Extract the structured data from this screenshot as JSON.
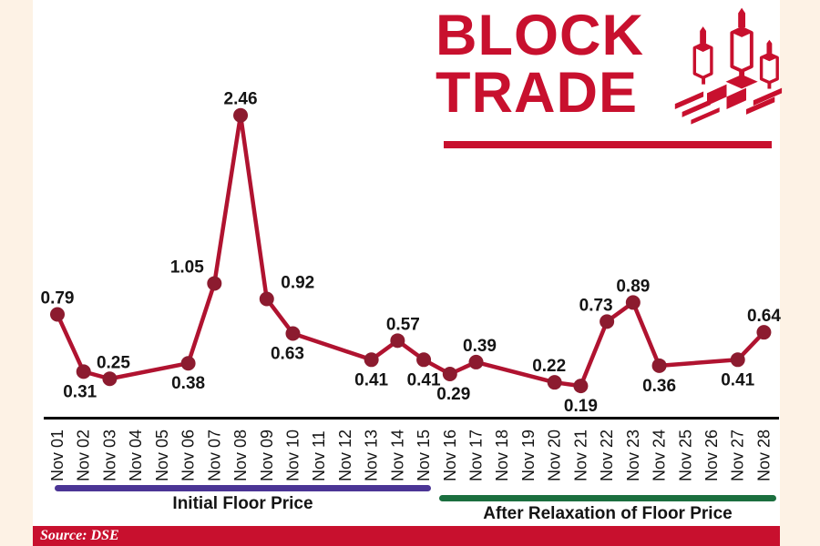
{
  "logo": {
    "line1": "BLOCK",
    "line2": "TRADE"
  },
  "legend": {
    "initial": "Initial Floor Price",
    "after": "After Relaxation of Floor Price"
  },
  "source": {
    "label": "Source: DSE"
  },
  "colors": {
    "crimson": "#C8102E",
    "line": "#B01330",
    "point": "#8C1B2F",
    "purple": "#4B3595",
    "green": "#1B6F3F",
    "cream": "#FDF2E5",
    "axis": "#000000",
    "text": "#141414"
  },
  "chart_data": {
    "type": "line",
    "title": "BLOCK TRADE",
    "xlabel": "",
    "ylabel": "",
    "ylim": [
      0,
      2.6
    ],
    "grid": false,
    "legend_position": "bottom",
    "categories": [
      "Nov 01",
      "Nov 02",
      "Nov 03",
      "Nov 04",
      "Nov 05",
      "Nov 06",
      "Nov 07",
      "Nov 08",
      "Nov 09",
      "Nov 10",
      "Nov 11",
      "Nov 12",
      "Nov 13",
      "Nov 14",
      "Nov 15",
      "Nov 16",
      "Nov 17",
      "Nov 18",
      "Nov 19",
      "Nov 20",
      "Nov 21",
      "Nov 22",
      "Nov 23",
      "Nov 24",
      "Nov 25",
      "Nov 26",
      "Nov 27",
      "Nov 28"
    ],
    "values": [
      0.79,
      0.31,
      0.25,
      null,
      null,
      0.38,
      1.05,
      2.46,
      0.92,
      0.63,
      null,
      null,
      0.41,
      0.57,
      0.41,
      0.29,
      0.39,
      null,
      null,
      0.22,
      0.19,
      0.73,
      0.89,
      0.36,
      null,
      null,
      0.41,
      0.64
    ],
    "point_labels_visible": true,
    "label_side": [
      "above",
      "below",
      "above",
      null,
      null,
      "below",
      "above",
      "above",
      "above",
      "below",
      null,
      null,
      "below",
      "above",
      "below",
      "below",
      "above",
      null,
      null,
      "above",
      "below",
      "above",
      "above",
      "below",
      null,
      null,
      "below",
      "above"
    ],
    "label_dx": [
      0,
      -4,
      4,
      0,
      0,
      0,
      -30,
      0,
      34,
      -6,
      0,
      0,
      0,
      6,
      0,
      4,
      4,
      0,
      0,
      -6,
      0,
      -12,
      0,
      0,
      0,
      0,
      0,
      0
    ],
    "segments": [
      {
        "name": "Initial Floor Price",
        "from": "Nov 01",
        "to": "Nov 15",
        "color": "#4B3595"
      },
      {
        "name": "After Relaxation of Floor Price",
        "from": "Nov 16",
        "to": "Nov 28",
        "color": "#1B6F3F"
      }
    ]
  }
}
